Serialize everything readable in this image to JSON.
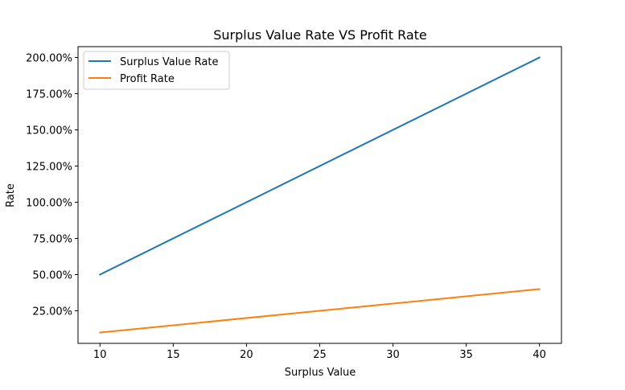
{
  "chart_data": {
    "type": "line",
    "title": "Surplus Value Rate VS Profit Rate",
    "xlabel": "Surplus Value",
    "ylabel": "Rate",
    "x": [
      10,
      40
    ],
    "xlim": [
      8.5,
      41.5
    ],
    "ylim": [
      0.025,
      2.075
    ],
    "x_ticks": [
      10,
      15,
      20,
      25,
      30,
      35,
      40
    ],
    "x_tick_labels": [
      "10",
      "15",
      "20",
      "25",
      "30",
      "35",
      "40"
    ],
    "y_ticks": [
      0.25,
      0.5,
      0.75,
      1.0,
      1.25,
      1.5,
      1.75,
      2.0
    ],
    "y_tick_labels": [
      "25.00%",
      "50.00%",
      "75.00%",
      "100.00%",
      "125.00%",
      "150.00%",
      "175.00%",
      "200.00%"
    ],
    "series": [
      {
        "name": "Surplus Value Rate",
        "values": [
          0.5,
          2.0
        ],
        "color": "#1f77b4"
      },
      {
        "name": "Profit Rate",
        "values": [
          0.1,
          0.4
        ],
        "color": "#ff7f0e"
      }
    ],
    "grid": false,
    "legend_position": "top-left"
  }
}
